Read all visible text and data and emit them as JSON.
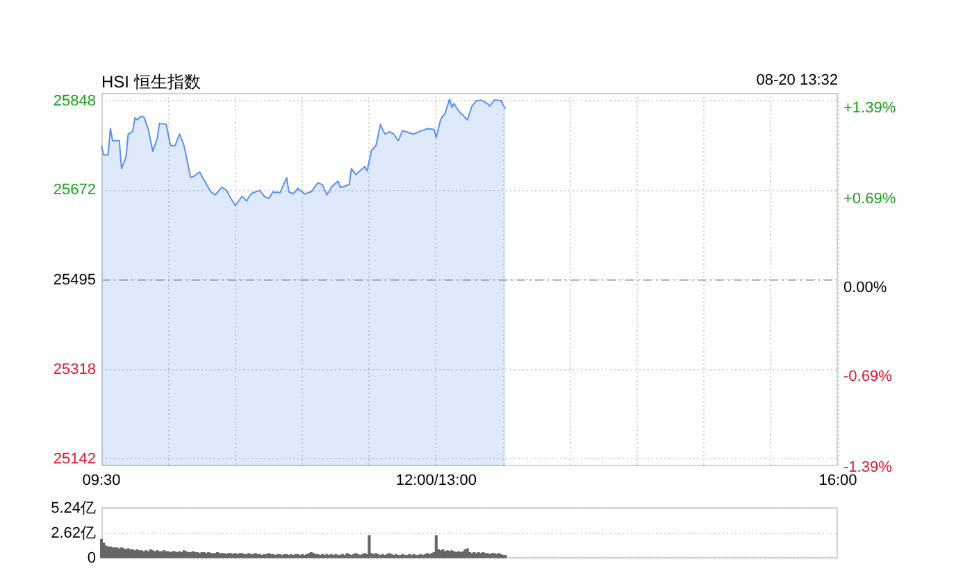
{
  "chart_data": [
    {
      "type": "area",
      "title": "HSI 恒生指数",
      "annotations": [
        "08-20 13:32"
      ],
      "legend": false,
      "marker": "none",
      "line_style": "solid",
      "grid": true,
      "categories": [
        "09:30",
        null,
        null,
        null,
        null,
        null,
        null,
        null,
        null,
        null,
        null,
        null,
        null,
        null,
        null,
        null,
        null,
        null,
        null,
        null,
        null,
        null,
        null,
        null,
        null,
        null,
        null,
        null,
        null,
        null,
        null,
        null,
        null,
        null,
        null,
        null,
        null,
        null,
        null,
        null,
        null,
        null,
        null,
        null,
        null,
        null,
        null,
        null,
        null,
        null,
        null,
        null,
        null,
        null,
        null,
        null,
        null,
        null,
        null,
        null,
        null,
        null,
        null,
        null,
        null,
        null,
        null,
        null,
        null,
        null,
        null,
        null,
        null,
        null,
        null,
        null,
        null,
        null,
        null,
        null,
        null,
        null,
        null,
        null,
        null,
        null,
        null,
        null,
        null,
        null,
        null,
        null,
        null,
        null,
        null,
        null,
        null,
        null,
        null,
        null,
        null,
        null,
        null,
        null,
        null,
        null,
        null,
        null,
        null,
        null,
        null,
        null,
        null,
        null,
        null,
        null,
        null,
        null,
        null,
        null,
        null,
        null,
        null,
        null,
        null,
        null,
        null,
        null,
        null,
        null,
        null,
        null,
        null,
        null,
        null,
        null,
        null,
        null,
        null,
        null,
        null,
        null,
        null,
        null,
        null,
        null,
        null,
        null,
        null,
        null,
        "12:00/13:00",
        null,
        null,
        null,
        null,
        null,
        null,
        null,
        null,
        null,
        null,
        null,
        null,
        null,
        null,
        null,
        null,
        null,
        null,
        null,
        null,
        null,
        null,
        null,
        null,
        null,
        null,
        null,
        null,
        null,
        null,
        null,
        null,
        null,
        null,
        null,
        null,
        null,
        null,
        null,
        null,
        null,
        null,
        null,
        null,
        null,
        null,
        null,
        null,
        null,
        null,
        null,
        null,
        null,
        null,
        null,
        null,
        null,
        null,
        null,
        null,
        null,
        null,
        null,
        null,
        null,
        null,
        null,
        null,
        null,
        null,
        null,
        null,
        null,
        null,
        null,
        null,
        null,
        null,
        null,
        null,
        null,
        null,
        null,
        null,
        null,
        null,
        null,
        null,
        null,
        null,
        null,
        null,
        null,
        null,
        null,
        null,
        null,
        null,
        null,
        null,
        null,
        null,
        null,
        null,
        null,
        null,
        null,
        null,
        null,
        null,
        null,
        null,
        null,
        null,
        null,
        null,
        null,
        null,
        null,
        null,
        null,
        null,
        null,
        null,
        null,
        null,
        null,
        null,
        null,
        null,
        null,
        null,
        null,
        null,
        null,
        null,
        null,
        null,
        null,
        null,
        null,
        null,
        null,
        null,
        null,
        null,
        null,
        null,
        null,
        null,
        null,
        null,
        null,
        null,
        null,
        null,
        null,
        null,
        null,
        null,
        null,
        null,
        null,
        null,
        null,
        null,
        null,
        null,
        null,
        null,
        null,
        null,
        null,
        null,
        null,
        null,
        null,
        null,
        null,
        "16:00"
      ],
      "ylim": [
        25128,
        25864
      ],
      "yticks": [
        25142,
        25318,
        25495,
        25672,
        25848
      ],
      "y2lim": [
        -1.44,
        1.45
      ],
      "y2ticks": [
        {
          "value": -1.39,
          "label": "-1.39%"
        },
        {
          "value": -0.69,
          "label": "-0.69%"
        },
        {
          "value": 0,
          "label": "0.00%"
        },
        {
          "value": 0.69,
          "label": "+0.69%"
        },
        {
          "value": 1.39,
          "label": "+1.39%"
        }
      ],
      "ref_lines": [
        {
          "axis": "y",
          "value": 25495,
          "color": "#aaaaaa",
          "line_style": "dashed"
        }
      ],
      "series": [
        {
          "color": "#5b8ff0",
          "values": [
            25760,
            25742,
            25742,
            25742,
            25794,
            25770,
            25770,
            25770,
            25770,
            25715,
            25726,
            25738,
            25783,
            25785,
            25788,
            25815,
            25811,
            25815,
            25818,
            25817,
            25805,
            25792,
            25770,
            25749,
            25762,
            25774,
            25804,
            25803,
            25803,
            25802,
            25781,
            25760,
            25760,
            25760,
            25772,
            25783,
            25772,
            25760,
            25739,
            25718,
            25697,
            25699,
            25701,
            25705,
            25708,
            25700,
            25692,
            25684,
            25677,
            25669,
            25666,
            25663,
            25668,
            25673,
            25678,
            25675,
            25672,
            25664,
            25656,
            25649,
            25642,
            25648,
            25654,
            25660,
            25656,
            25651,
            25658,
            25665,
            25667,
            25669,
            25670,
            25672,
            25666,
            25660,
            25658,
            25656,
            25663,
            25669,
            25668,
            25668,
            25667,
            25677,
            25687,
            25697,
            25669,
            25667,
            25665,
            25670,
            25676,
            25672,
            25669,
            25665,
            25666,
            25668,
            25669,
            25675,
            25681,
            25687,
            25685,
            25683,
            25673,
            25663,
            25670,
            25678,
            25682,
            25686,
            25690,
            25678,
            25679,
            25680,
            25682,
            25683,
            25715,
            25709,
            25703,
            25707,
            25711,
            25715,
            25719,
            25710,
            25730,
            25751,
            25755,
            25760,
            25781,
            25802,
            25792,
            25783,
            25785,
            25788,
            25785,
            25783,
            25776,
            25770,
            25780,
            25790,
            25788,
            25787,
            25785,
            25784,
            25783,
            25785,
            25787,
            25789,
            25790,
            25792,
            25794,
            25793,
            25793,
            25792,
            25776,
            25794,
            25812,
            25818,
            25824,
            25838,
            25852,
            25836,
            25843,
            25836,
            25829,
            25824,
            25820,
            25815,
            25811,
            25824,
            25838,
            25843,
            25849,
            25849,
            25850,
            25848,
            25845,
            25843,
            25838,
            25844,
            25850,
            25850,
            25849,
            25849,
            25840,
            25833,
            null,
            null,
            null,
            null,
            null,
            null,
            null,
            null,
            null,
            null,
            null,
            null,
            null,
            null,
            null,
            null,
            null,
            null,
            null,
            null,
            null,
            null,
            null,
            null,
            null,
            null,
            null,
            null,
            null,
            null,
            null,
            null,
            null,
            null,
            null,
            null,
            null,
            null,
            null,
            null,
            null,
            null,
            null,
            null,
            null,
            null,
            null,
            null,
            null,
            null,
            null,
            null,
            null,
            null,
            null,
            null,
            null,
            null,
            null,
            null,
            null,
            null,
            null,
            null,
            null,
            null,
            null,
            null,
            null,
            null,
            null,
            null,
            null,
            null,
            null,
            null,
            null,
            null,
            null,
            null,
            null,
            null,
            null,
            null,
            null,
            null,
            null,
            null,
            null,
            null,
            null,
            null,
            null,
            null,
            null,
            null,
            null,
            null,
            null,
            null,
            null,
            null,
            null,
            null,
            null,
            null,
            null,
            null,
            null,
            null,
            null,
            null,
            null,
            null,
            null,
            null,
            null,
            null,
            null,
            null,
            null,
            null,
            null,
            null,
            null,
            null,
            null,
            null,
            null,
            null,
            null,
            null,
            null,
            null,
            null,
            null,
            null,
            null,
            null,
            null,
            null,
            null,
            null,
            null,
            null,
            null,
            null,
            null,
            null
          ]
        }
      ]
    },
    {
      "type": "bar",
      "grid": "y",
      "legend": false,
      "tick_labels": "y",
      "categories": [
        null,
        null,
        null,
        null,
        null,
        null,
        null,
        null,
        null,
        null,
        null,
        null,
        null,
        null,
        null,
        null,
        null,
        null,
        null,
        null,
        null,
        null,
        null,
        null,
        null,
        null,
        null,
        null,
        null,
        null,
        null,
        null,
        null,
        null,
        null,
        null,
        null,
        null,
        null,
        null,
        null,
        null,
        null,
        null,
        null,
        null,
        null,
        null,
        null,
        null,
        null,
        null,
        null,
        null,
        null,
        null,
        null,
        null,
        null,
        null,
        null,
        null,
        null,
        null,
        null,
        null,
        null,
        null,
        null,
        null,
        null,
        null,
        null,
        null,
        null,
        null,
        null,
        null,
        null,
        null,
        null,
        null,
        null,
        null,
        null,
        null,
        null,
        null,
        null,
        null,
        null,
        null,
        null,
        null,
        null,
        null,
        null,
        null,
        null,
        null,
        null,
        null,
        null,
        null,
        null,
        null,
        null,
        null,
        null,
        null,
        null,
        null,
        null,
        null,
        null,
        null,
        null,
        null,
        null,
        null,
        null,
        null,
        null,
        null,
        null,
        null,
        null,
        null,
        null,
        null,
        null,
        null,
        null,
        null,
        null,
        null,
        null,
        null,
        null,
        null,
        null,
        null,
        null,
        null,
        null,
        null,
        null,
        null,
        null,
        null,
        null,
        null,
        null,
        null,
        null,
        null,
        null,
        null,
        null,
        null,
        null,
        null,
        null,
        null,
        null,
        null,
        null,
        null,
        null,
        null,
        null,
        null,
        null,
        null,
        null,
        null,
        null,
        null,
        null,
        null,
        null,
        null,
        null,
        null,
        null,
        null,
        null,
        null,
        null,
        null,
        null,
        null,
        null,
        null,
        null,
        null,
        null,
        null,
        null,
        null,
        null,
        null,
        null,
        null,
        null,
        null,
        null,
        null,
        null,
        null,
        null,
        null,
        null,
        null,
        null,
        null,
        null,
        null,
        null,
        null,
        null,
        null,
        null,
        null,
        null,
        null,
        null,
        null,
        null,
        null,
        null,
        null,
        null,
        null,
        null,
        null,
        null,
        null,
        null,
        null,
        null,
        null,
        null,
        null,
        null,
        null,
        null,
        null,
        null,
        null,
        null,
        null,
        null,
        null,
        null,
        null,
        null,
        null,
        null,
        null,
        null,
        null,
        null,
        null,
        null,
        null,
        null,
        null,
        null,
        null,
        null,
        null,
        null,
        null,
        null,
        null,
        null,
        null,
        null,
        null,
        null,
        null,
        null,
        null,
        null,
        null,
        null,
        null,
        null,
        null,
        null,
        null,
        null,
        null,
        null,
        null,
        null,
        null,
        null,
        null,
        null,
        null,
        null,
        null,
        null,
        null,
        null,
        null,
        null,
        null,
        null,
        null,
        null,
        null,
        null,
        null,
        null,
        null,
        null,
        null,
        null,
        null,
        null,
        null,
        null,
        null,
        null,
        null,
        null,
        null,
        null
      ],
      "ylim": [
        0,
        5.4
      ],
      "yticks": [
        {
          "value": 0,
          "label": "0"
        },
        {
          "value": 2.62,
          "label": "2.62亿"
        },
        {
          "value": 5.24,
          "label": "5.24亿"
        }
      ],
      "series": [
        {
          "color": "#666666",
          "values": [
            2.0,
            1.6,
            1.3,
            1.2,
            1.2,
            1.1,
            1.1,
            1.1,
            1.0,
            1.1,
            1.0,
            0.9,
            1.0,
            0.9,
            0.9,
            0.8,
            0.9,
            0.8,
            0.8,
            0.7,
            0.8,
            0.7,
            0.9,
            0.8,
            0.7,
            0.8,
            0.7,
            0.7,
            0.8,
            0.7,
            0.7,
            0.6,
            0.7,
            0.7,
            0.6,
            0.7,
            0.6,
            0.8,
            0.7,
            0.6,
            0.6,
            0.7,
            0.6,
            0.6,
            0.5,
            0.6,
            0.6,
            0.5,
            0.6,
            0.5,
            0.5,
            0.5,
            0.6,
            0.5,
            0.5,
            0.5,
            0.4,
            0.5,
            0.5,
            0.4,
            0.5,
            0.4,
            0.5,
            0.5,
            0.4,
            0.4,
            0.5,
            0.4,
            0.4,
            0.5,
            0.4,
            0.4,
            0.3,
            0.4,
            0.4,
            0.5,
            0.4,
            0.4,
            0.3,
            0.4,
            0.4,
            0.3,
            0.4,
            0.4,
            0.3,
            0.4,
            0.3,
            0.4,
            0.4,
            0.3,
            0.4,
            0.3,
            0.4,
            0.5,
            0.6,
            0.5,
            0.4,
            0.4,
            0.3,
            0.4,
            0.3,
            0.4,
            0.3,
            0.4,
            0.3,
            0.4,
            0.3,
            0.3,
            0.4,
            0.3,
            0.5,
            0.4,
            0.3,
            0.4,
            0.5,
            0.4,
            0.3,
            0.4,
            0.5,
            0.4,
            2.4,
            0.5,
            0.4,
            0.5,
            0.4,
            0.3,
            0.4,
            0.3,
            0.4,
            0.5,
            0.4,
            0.3,
            0.4,
            0.3,
            0.3,
            0.4,
            0.3,
            0.3,
            0.4,
            0.3,
            0.4,
            0.3,
            0.3,
            0.4,
            0.3,
            0.4,
            0.5,
            0.4,
            0.5,
            0.6,
            2.4,
            0.9,
            0.8,
            0.9,
            0.7,
            0.8,
            0.7,
            0.8,
            0.7,
            0.6,
            0.7,
            0.6,
            0.7,
            0.9,
            1.0,
            0.6,
            0.5,
            0.6,
            0.5,
            0.6,
            0.5,
            0.6,
            0.5,
            0.5,
            0.4,
            0.5,
            0.5,
            0.4,
            0.5,
            0.4,
            0.3,
            0.3,
            null,
            null,
            null,
            null,
            null,
            null,
            null,
            null,
            null,
            null,
            null,
            null,
            null,
            null,
            null,
            null,
            null,
            null,
            null,
            null,
            null,
            null,
            null,
            null,
            null,
            null,
            null,
            null,
            null,
            null,
            null,
            null,
            null,
            null,
            null,
            null,
            null,
            null,
            null,
            null,
            null,
            null,
            null,
            null,
            null,
            null,
            null,
            null,
            null,
            null,
            null,
            null,
            null,
            null,
            null,
            null,
            null,
            null,
            null,
            null,
            null,
            null,
            null,
            null,
            null,
            null,
            null,
            null,
            null,
            null,
            null,
            null,
            null,
            null,
            null,
            null,
            null,
            null,
            null,
            null,
            null,
            null,
            null,
            null,
            null,
            null,
            null,
            null,
            null,
            null,
            null,
            null,
            null,
            null,
            null,
            null,
            null,
            null,
            null,
            null,
            null,
            null,
            null,
            null,
            null,
            null,
            null,
            null,
            null,
            null,
            null,
            null,
            null,
            null,
            null,
            null,
            null,
            null,
            null,
            null,
            null,
            null,
            null,
            null,
            null,
            null,
            null,
            null,
            null,
            null,
            null,
            null,
            null,
            null,
            null,
            null,
            null,
            null,
            null,
            null,
            null,
            null,
            null,
            null,
            null,
            null,
            null,
            null,
            null
          ]
        }
      ]
    }
  ]
}
